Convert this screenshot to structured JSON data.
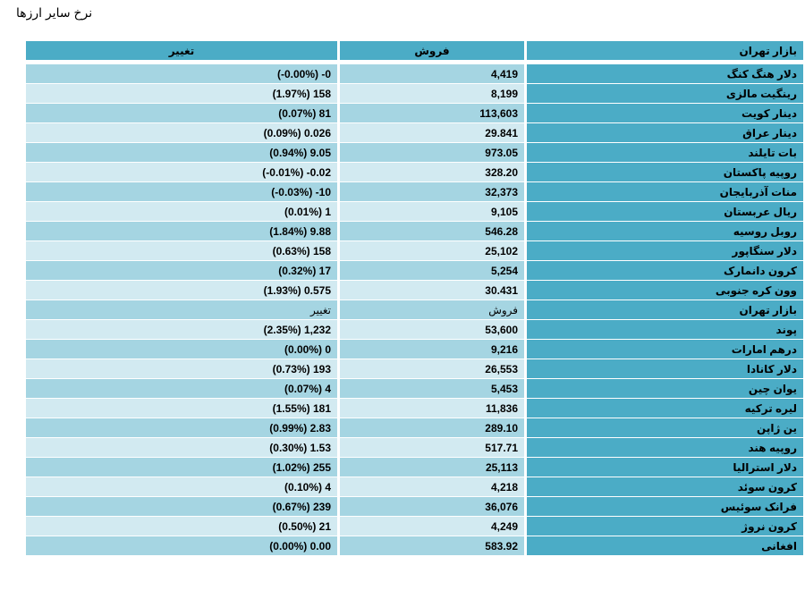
{
  "page": {
    "title": "نرخ سایر ارزها"
  },
  "table": {
    "header": {
      "change": "تغییر",
      "sell": "فروش",
      "market": "بازار تهران"
    },
    "group1": [
      {
        "name": "دلار هنگ کنگ",
        "sell": "4,419",
        "change": "(-0.00%) -0"
      },
      {
        "name": "رینگیت مالزی",
        "sell": "8,199",
        "change": "(1.97%) 158"
      },
      {
        "name": "دینار کویت",
        "sell": "113,603",
        "change": "(0.07%) 81"
      },
      {
        "name": "دینار عراق",
        "sell": "29.841",
        "change": "(0.09%) 0.026"
      },
      {
        "name": "بات تایلند",
        "sell": "973.05",
        "change": "(0.94%) 9.05"
      },
      {
        "name": "روپیه پاکستان",
        "sell": "328.20",
        "change": "(-0.01%) -0.02"
      },
      {
        "name": "منات آذربایجان",
        "sell": "32,373",
        "change": "(-0.03%) -10"
      },
      {
        "name": "ریال عربستان",
        "sell": "9,105",
        "change": "(0.01%) 1"
      },
      {
        "name": "روبل روسیه",
        "sell": "546.28",
        "change": "(1.84%) 9.88"
      },
      {
        "name": "دلار سنگاپور",
        "sell": "25,102",
        "change": "(0.63%) 158"
      },
      {
        "name": "کرون دانمارک",
        "sell": "5,254",
        "change": "(0.32%) 17"
      },
      {
        "name": "وون کره جنوبی",
        "sell": "30.431",
        "change": "(1.93%) 0.575"
      }
    ],
    "subheader": {
      "change": "تغییر",
      "sell": "فروش",
      "market": "بازار تهران"
    },
    "group2": [
      {
        "name": "پوند",
        "sell": "53,600",
        "change": "(2.35%) 1,232"
      },
      {
        "name": "درهم امارات",
        "sell": "9,216",
        "change": "(0.00%) 0"
      },
      {
        "name": "دلار کانادا",
        "sell": "26,553",
        "change": "(0.73%) 193"
      },
      {
        "name": "یوان چین",
        "sell": "5,453",
        "change": "(0.07%) 4"
      },
      {
        "name": "لیره ترکیه",
        "sell": "11,836",
        "change": "(1.55%) 181"
      },
      {
        "name": "ین ژاپن",
        "sell": "289.10",
        "change": "(0.99%) 2.83"
      },
      {
        "name": "روپیه هند",
        "sell": "517.71",
        "change": "(0.30%) 1.53"
      },
      {
        "name": "دلار استرالیا",
        "sell": "25,113",
        "change": "(1.02%) 255"
      },
      {
        "name": "کرون سوئد",
        "sell": "4,218",
        "change": "(0.10%) 4"
      },
      {
        "name": "فرانک سوئیس",
        "sell": "36,076",
        "change": "(0.67%) 239"
      },
      {
        "name": "کرون نروژ",
        "sell": "4,249",
        "change": "(0.50%) 21"
      },
      {
        "name": "افغانی",
        "sell": "583.92",
        "change": "(0.00%) 0.00"
      }
    ]
  },
  "colors": {
    "header": "#4bacc6",
    "row_dark": "#a5d5e2",
    "row_light": "#d2eaf1",
    "name_column": "#4bacc6"
  }
}
